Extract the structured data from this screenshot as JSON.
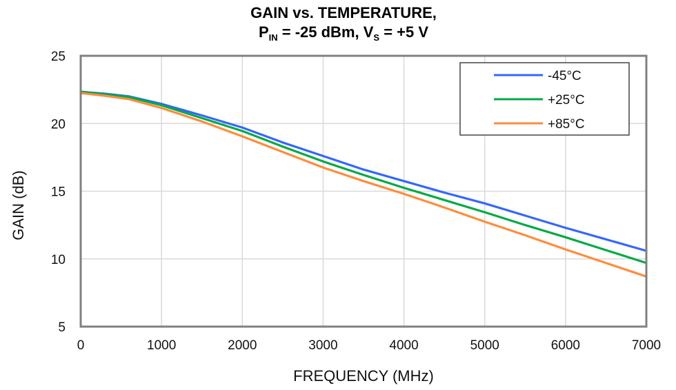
{
  "chart_data": {
    "type": "line",
    "title_line1": "GAIN vs. TEMPERATURE,",
    "title_line2_parts": {
      "p": "P",
      "p_sub": "IN",
      "mid": " = -25 dBm, V",
      "v_sub": "S",
      "end": " = +5 V"
    },
    "title": "GAIN vs. TEMPERATURE, PIN = -25 dBm, VS = +5 V",
    "xlabel": "FREQUENCY (MHz)",
    "ylabel": "GAIN (dB)",
    "xlim": [
      0,
      7000
    ],
    "ylim": [
      5,
      25
    ],
    "xticks": [
      0,
      1000,
      2000,
      3000,
      4000,
      5000,
      6000,
      7000
    ],
    "yticks": [
      5,
      10,
      15,
      20,
      25
    ],
    "grid": true,
    "legend_position": "top-right",
    "x": [
      0,
      300,
      600,
      1000,
      1500,
      2000,
      2500,
      3000,
      3500,
      4000,
      4500,
      5000,
      5500,
      6000,
      6500,
      7000
    ],
    "series": [
      {
        "name": "-45°C",
        "color": "#3366ff",
        "values": [
          22.35,
          22.2,
          22.0,
          21.45,
          20.6,
          19.7,
          18.6,
          17.6,
          16.6,
          15.75,
          14.9,
          14.1,
          13.2,
          12.3,
          11.45,
          10.6
        ]
      },
      {
        "name": "+25°C",
        "color": "#00aa44",
        "values": [
          22.35,
          22.15,
          21.95,
          21.35,
          20.4,
          19.45,
          18.3,
          17.2,
          16.2,
          15.25,
          14.35,
          13.45,
          12.5,
          11.6,
          10.65,
          9.7
        ]
      },
      {
        "name": "+85°C",
        "color": "#ff8c3a",
        "values": [
          22.25,
          22.05,
          21.8,
          21.15,
          20.15,
          19.05,
          17.9,
          16.75,
          15.75,
          14.8,
          13.8,
          12.75,
          11.75,
          10.7,
          9.7,
          8.7
        ]
      }
    ]
  }
}
